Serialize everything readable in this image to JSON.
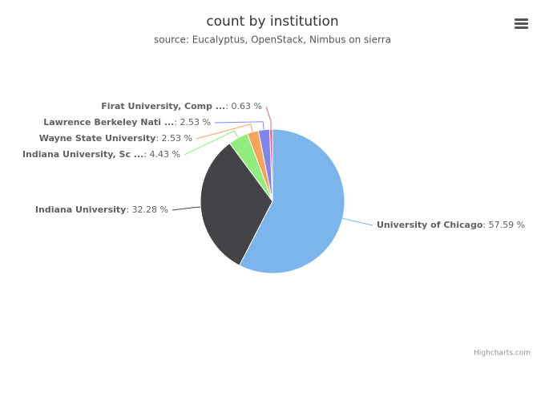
{
  "chart_data": {
    "type": "pie",
    "title": "count by institution",
    "subtitle": "source: Eucalyptus, OpenStack, Nimbus on sierra",
    "categories": [
      "University of Chicago",
      "Indiana University",
      "Indiana University, Sc ...",
      "Wayne State University",
      "Lawrence Berkeley Nati ...",
      "Firat University, Comp ..."
    ],
    "values": [
      57.59,
      32.28,
      4.43,
      2.53,
      2.53,
      0.63
    ],
    "value_labels": [
      ": 57.59 %",
      ": 32.28 %",
      ": 4.43 %",
      ": 2.53 %",
      ": 2.53 %",
      ": 0.63 %"
    ],
    "colors": [
      "#7cb5ec",
      "#434348",
      "#90ed7d",
      "#f7a35c",
      "#8085e9",
      "#f15c80"
    ],
    "credits": "Highcharts.com"
  }
}
